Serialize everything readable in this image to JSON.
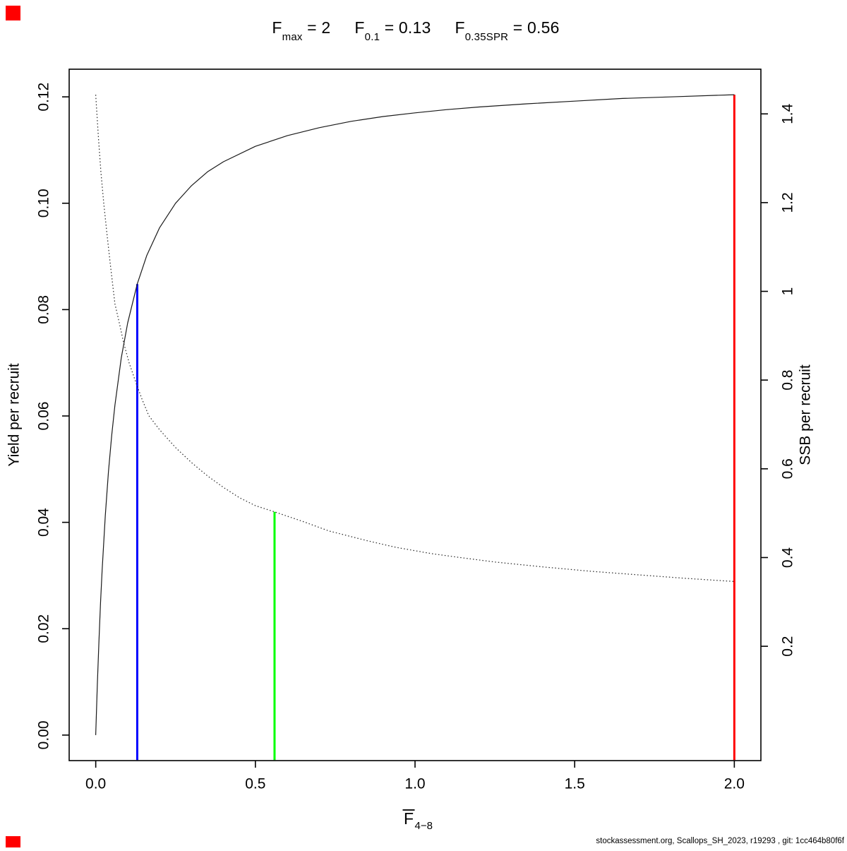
{
  "title": {
    "segments": [
      {
        "base": "F",
        "sub": "max",
        "value": " = 2"
      },
      {
        "base": "F",
        "sub": "0.1",
        "value": " = 0.13"
      },
      {
        "base": "F",
        "sub": "0.35SPR",
        "value": " = 0.56"
      }
    ],
    "plain": "Fmax = 2    F0.1 = 0.13    F0.35SPR = 0.56"
  },
  "footer": "stockassessment.org, Scallops_SH_2023, r19293 , git: 1cc464b80f6f",
  "markers": {
    "color": "#ff0000"
  },
  "chart_data": {
    "type": "line",
    "title": "Fmax = 2    F0.1 = 0.13    F0.35SPR = 0.56",
    "xlabel": "F̄4−8",
    "xlabel_base": "F",
    "xlabel_sub": "4−8",
    "ylabel_left": "Yield per recruit",
    "ylabel_right": "SSB per recruit",
    "grid": false,
    "legend": "none",
    "xlim": [
      -0.0832,
      2.0832
    ],
    "ylim_left": [
      -0.0048,
      0.1252
    ],
    "ylim_right": [
      -0.0577,
      1.5007
    ],
    "x_ticks": [
      0.0,
      0.5,
      1.0,
      1.5,
      2.0
    ],
    "x_tick_labels": [
      "0.0",
      "0.5",
      "1.0",
      "1.5",
      "2.0"
    ],
    "y_left_ticks": [
      0.0,
      0.02,
      0.04,
      0.06,
      0.08,
      0.1,
      0.12
    ],
    "y_left_tick_labels": [
      "0.00",
      "0.02",
      "0.04",
      "0.06",
      "0.08",
      "0.10",
      "0.12"
    ],
    "y_right_ticks": [
      0.2,
      0.4,
      0.6,
      0.8,
      1.0,
      1.2,
      1.4
    ],
    "y_right_tick_labels": [
      "0.2",
      "0.4",
      "0.6",
      "0.8",
      "1",
      "1.2",
      "1.4"
    ],
    "series": [
      {
        "name": "yield-per-recruit",
        "axis": "left",
        "style": "solid",
        "color": "#1a1a1a",
        "x": [
          0,
          0.005,
          0.01,
          0.015,
          0.02,
          0.03,
          0.04,
          0.05,
          0.06,
          0.08,
          0.1,
          0.13,
          0.16,
          0.2,
          0.25,
          0.3,
          0.35,
          0.4,
          0.5,
          0.6,
          0.7,
          0.8,
          0.9,
          1.0,
          1.1,
          1.2,
          1.35,
          1.5,
          1.65,
          1.8,
          2.0
        ],
        "y": [
          0,
          0.0095,
          0.0177,
          0.0248,
          0.031,
          0.0413,
          0.0496,
          0.0564,
          0.062,
          0.0709,
          0.0775,
          0.0848,
          0.0902,
          0.0954,
          0.1,
          0.1033,
          0.1059,
          0.1078,
          0.1107,
          0.1127,
          0.1142,
          0.1154,
          0.1163,
          0.117,
          0.1176,
          0.1181,
          0.1187,
          0.1192,
          0.1197,
          0.12,
          0.1204
        ]
      },
      {
        "name": "ssb-per-recruit",
        "axis": "right",
        "style": "dotted",
        "color": "#2b2b2b",
        "x": [
          0,
          0.008,
          0.016,
          0.025,
          0.035,
          0.045,
          0.06,
          0.075,
          0.087,
          0.105,
          0.128,
          0.145,
          0.166,
          0.2,
          0.25,
          0.3,
          0.35,
          0.4,
          0.45,
          0.5,
          0.56,
          0.65,
          0.73,
          0.85,
          0.94,
          1.05,
          1.13,
          1.25,
          1.4,
          1.55,
          1.7,
          1.85,
          2.0
        ],
        "y": [
          1.443,
          1.35,
          1.27,
          1.2,
          1.13,
          1.065,
          0.972,
          0.925,
          0.885,
          0.838,
          0.79,
          0.757,
          0.72,
          0.688,
          0.648,
          0.614,
          0.584,
          0.558,
          0.535,
          0.517,
          0.503,
          0.481,
          0.46,
          0.438,
          0.423,
          0.409,
          0.401,
          0.39,
          0.379,
          0.369,
          0.361,
          0.353,
          0.346
        ]
      }
    ],
    "reference_lines": [
      {
        "name": "f01",
        "label": "F0.1",
        "x": 0.13,
        "color": "#0000ff",
        "top_axis": "left",
        "top_value": 0.0848
      },
      {
        "name": "f035spr",
        "label": "F0.35SPR",
        "x": 0.56,
        "color": "#00ff00",
        "top_axis": "right",
        "top_value": 0.503
      },
      {
        "name": "fmax",
        "label": "Fmax",
        "x": 2.0,
        "color": "#ff0000",
        "top_axis": "left",
        "top_value": 0.1204
      }
    ]
  }
}
